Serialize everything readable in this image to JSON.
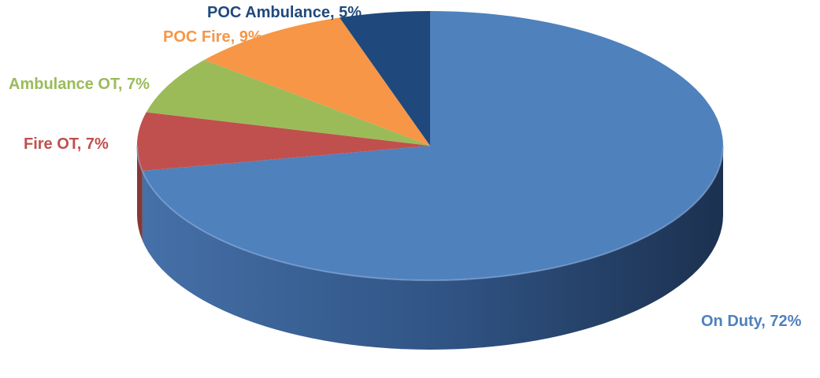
{
  "chart_data": {
    "type": "pie",
    "style": "3d",
    "title": "",
    "start_angle_deg": 0,
    "direction": "clockwise",
    "slices": [
      {
        "name": "On Duty",
        "value": 72,
        "label": "On Duty, 72%",
        "color": "#4F81BD"
      },
      {
        "name": "Fire OT",
        "value": 7,
        "label": "Fire OT, 7%",
        "color": "#C0504D"
      },
      {
        "name": "Ambulance OT",
        "value": 7,
        "label": "Ambulance OT, 7%",
        "color": "#9BBB59"
      },
      {
        "name": "POC Fire",
        "value": 9,
        "label": "POC Fire, 9%",
        "color": "#F79646"
      },
      {
        "name": "POC Ambulance",
        "value": 5,
        "label": "POC Ambulance, 5%",
        "color": "#1F497D"
      }
    ]
  }
}
